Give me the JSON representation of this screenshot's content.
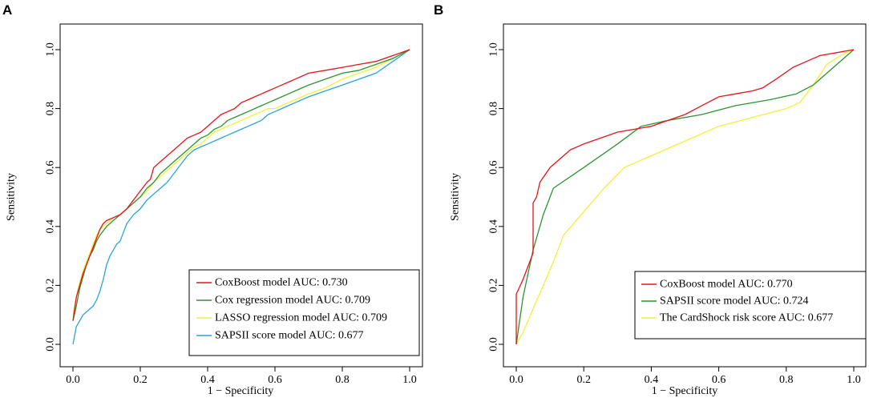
{
  "chart_data": [
    {
      "panel": "A",
      "type": "line",
      "title": "",
      "xlabel": "1 − Specificity",
      "ylabel": "Sensitivity",
      "xlim": [
        0,
        1
      ],
      "ylim": [
        0,
        1
      ],
      "xticks": [
        "0.0",
        "0.2",
        "0.4",
        "0.6",
        "0.8",
        "1.0"
      ],
      "yticks": [
        "0.0",
        "0.2",
        "0.4",
        "0.6",
        "0.8",
        "1.0"
      ],
      "grid": false,
      "legend_position": "bottom-right",
      "series": [
        {
          "name": "CoxBoost model AUC: 0.730",
          "color": "#e8131b",
          "points": [
            [
              0,
              0.08
            ],
            [
              0.005,
              0.12
            ],
            [
              0.01,
              0.16
            ],
            [
              0.02,
              0.2
            ],
            [
              0.03,
              0.24
            ],
            [
              0.04,
              0.27
            ],
            [
              0.05,
              0.3
            ],
            [
              0.06,
              0.33
            ],
            [
              0.07,
              0.36
            ],
            [
              0.08,
              0.39
            ],
            [
              0.09,
              0.41
            ],
            [
              0.1,
              0.42
            ],
            [
              0.12,
              0.43
            ],
            [
              0.14,
              0.44
            ],
            [
              0.16,
              0.46
            ],
            [
              0.18,
              0.49
            ],
            [
              0.2,
              0.52
            ],
            [
              0.22,
              0.55
            ],
            [
              0.23,
              0.56
            ],
            [
              0.24,
              0.6
            ],
            [
              0.26,
              0.62
            ],
            [
              0.28,
              0.64
            ],
            [
              0.3,
              0.66
            ],
            [
              0.32,
              0.68
            ],
            [
              0.34,
              0.7
            ],
            [
              0.36,
              0.71
            ],
            [
              0.38,
              0.72
            ],
            [
              0.4,
              0.74
            ],
            [
              0.42,
              0.76
            ],
            [
              0.44,
              0.78
            ],
            [
              0.46,
              0.79
            ],
            [
              0.48,
              0.8
            ],
            [
              0.5,
              0.82
            ],
            [
              0.52,
              0.83
            ],
            [
              0.54,
              0.84
            ],
            [
              0.56,
              0.85
            ],
            [
              0.58,
              0.86
            ],
            [
              0.6,
              0.87
            ],
            [
              0.62,
              0.88
            ],
            [
              0.64,
              0.89
            ],
            [
              0.66,
              0.9
            ],
            [
              0.68,
              0.91
            ],
            [
              0.7,
              0.92
            ],
            [
              0.75,
              0.93
            ],
            [
              0.8,
              0.94
            ],
            [
              0.85,
              0.95
            ],
            [
              0.9,
              0.96
            ],
            [
              0.95,
              0.98
            ],
            [
              1,
              1
            ]
          ]
        },
        {
          "name": "Cox regression model AUC: 0.709",
          "color": "#2e9431",
          "points": [
            [
              0,
              0.08
            ],
            [
              0.01,
              0.13
            ],
            [
              0.02,
              0.19
            ],
            [
              0.03,
              0.23
            ],
            [
              0.04,
              0.27
            ],
            [
              0.05,
              0.3
            ],
            [
              0.06,
              0.32
            ],
            [
              0.07,
              0.35
            ],
            [
              0.08,
              0.37
            ],
            [
              0.1,
              0.4
            ],
            [
              0.12,
              0.42
            ],
            [
              0.14,
              0.44
            ],
            [
              0.16,
              0.46
            ],
            [
              0.18,
              0.48
            ],
            [
              0.2,
              0.5
            ],
            [
              0.22,
              0.53
            ],
            [
              0.24,
              0.55
            ],
            [
              0.26,
              0.58
            ],
            [
              0.28,
              0.6
            ],
            [
              0.3,
              0.62
            ],
            [
              0.32,
              0.64
            ],
            [
              0.34,
              0.66
            ],
            [
              0.36,
              0.68
            ],
            [
              0.38,
              0.7
            ],
            [
              0.4,
              0.71
            ],
            [
              0.42,
              0.73
            ],
            [
              0.44,
              0.74
            ],
            [
              0.46,
              0.76
            ],
            [
              0.48,
              0.77
            ],
            [
              0.5,
              0.78
            ],
            [
              0.52,
              0.79
            ],
            [
              0.54,
              0.8
            ],
            [
              0.56,
              0.81
            ],
            [
              0.58,
              0.82
            ],
            [
              0.6,
              0.83
            ],
            [
              0.62,
              0.84
            ],
            [
              0.64,
              0.85
            ],
            [
              0.66,
              0.86
            ],
            [
              0.7,
              0.88
            ],
            [
              0.75,
              0.9
            ],
            [
              0.8,
              0.92
            ],
            [
              0.85,
              0.93
            ],
            [
              0.9,
              0.95
            ],
            [
              0.95,
              0.97
            ],
            [
              1,
              1
            ]
          ]
        },
        {
          "name": "LASSO regression model AUC: 0.709",
          "color": "#f2ef3c",
          "points": [
            [
              0,
              0.1
            ],
            [
              0.01,
              0.16
            ],
            [
              0.02,
              0.21
            ],
            [
              0.03,
              0.25
            ],
            [
              0.04,
              0.28
            ],
            [
              0.05,
              0.31
            ],
            [
              0.06,
              0.34
            ],
            [
              0.07,
              0.37
            ],
            [
              0.08,
              0.39
            ],
            [
              0.1,
              0.41
            ],
            [
              0.12,
              0.43
            ],
            [
              0.14,
              0.44
            ],
            [
              0.16,
              0.46
            ],
            [
              0.18,
              0.48
            ],
            [
              0.2,
              0.5
            ],
            [
              0.22,
              0.52
            ],
            [
              0.24,
              0.55
            ],
            [
              0.26,
              0.57
            ],
            [
              0.28,
              0.59
            ],
            [
              0.3,
              0.61
            ],
            [
              0.32,
              0.63
            ],
            [
              0.34,
              0.65
            ],
            [
              0.36,
              0.67
            ],
            [
              0.38,
              0.68
            ],
            [
              0.4,
              0.7
            ],
            [
              0.42,
              0.72
            ],
            [
              0.44,
              0.73
            ],
            [
              0.46,
              0.74
            ],
            [
              0.48,
              0.75
            ],
            [
              0.5,
              0.76
            ],
            [
              0.52,
              0.77
            ],
            [
              0.54,
              0.78
            ],
            [
              0.56,
              0.79
            ],
            [
              0.58,
              0.8
            ],
            [
              0.6,
              0.8
            ],
            [
              0.62,
              0.81
            ],
            [
              0.64,
              0.82
            ],
            [
              0.66,
              0.83
            ],
            [
              0.7,
              0.85
            ],
            [
              0.75,
              0.87
            ],
            [
              0.8,
              0.9
            ],
            [
              0.85,
              0.92
            ],
            [
              0.9,
              0.94
            ],
            [
              0.95,
              0.97
            ],
            [
              1,
              1
            ]
          ]
        },
        {
          "name": "SAPSII score model AUC: 0.677",
          "color": "#2aa4d9",
          "points": [
            [
              0,
              0
            ],
            [
              0.005,
              0.03
            ],
            [
              0.01,
              0.06
            ],
            [
              0.02,
              0.08
            ],
            [
              0.03,
              0.1
            ],
            [
              0.04,
              0.11
            ],
            [
              0.05,
              0.12
            ],
            [
              0.06,
              0.13
            ],
            [
              0.07,
              0.15
            ],
            [
              0.08,
              0.18
            ],
            [
              0.09,
              0.22
            ],
            [
              0.1,
              0.27
            ],
            [
              0.11,
              0.3
            ],
            [
              0.12,
              0.32
            ],
            [
              0.13,
              0.34
            ],
            [
              0.14,
              0.35
            ],
            [
              0.15,
              0.38
            ],
            [
              0.16,
              0.41
            ],
            [
              0.18,
              0.44
            ],
            [
              0.2,
              0.46
            ],
            [
              0.22,
              0.49
            ],
            [
              0.24,
              0.51
            ],
            [
              0.26,
              0.53
            ],
            [
              0.28,
              0.55
            ],
            [
              0.3,
              0.58
            ],
            [
              0.32,
              0.61
            ],
            [
              0.34,
              0.64
            ],
            [
              0.36,
              0.66
            ],
            [
              0.38,
              0.67
            ],
            [
              0.4,
              0.68
            ],
            [
              0.42,
              0.69
            ],
            [
              0.44,
              0.7
            ],
            [
              0.46,
              0.71
            ],
            [
              0.48,
              0.72
            ],
            [
              0.5,
              0.73
            ],
            [
              0.52,
              0.74
            ],
            [
              0.54,
              0.75
            ],
            [
              0.56,
              0.76
            ],
            [
              0.58,
              0.78
            ],
            [
              0.6,
              0.79
            ],
            [
              0.62,
              0.8
            ],
            [
              0.64,
              0.81
            ],
            [
              0.66,
              0.82
            ],
            [
              0.7,
              0.84
            ],
            [
              0.75,
              0.86
            ],
            [
              0.8,
              0.88
            ],
            [
              0.85,
              0.9
            ],
            [
              0.9,
              0.92
            ],
            [
              0.95,
              0.96
            ],
            [
              1,
              1
            ]
          ]
        }
      ]
    },
    {
      "panel": "B",
      "type": "line",
      "title": "",
      "xlabel": "1 − Specificity",
      "ylabel": "Sensitivity",
      "xlim": [
        0,
        1
      ],
      "ylim": [
        0,
        1
      ],
      "xticks": [
        "0.0",
        "0.2",
        "0.4",
        "0.6",
        "0.8",
        "1.0"
      ],
      "yticks": [
        "0.0",
        "0.2",
        "0.4",
        "0.6",
        "0.8",
        "1.0"
      ],
      "grid": false,
      "legend_position": "bottom-right",
      "series": [
        {
          "name": "CoxBoost model AUC: 0.770",
          "color": "#e8131b",
          "points": [
            [
              0,
              0
            ],
            [
              0,
              0.17
            ],
            [
              0.02,
              0.22
            ],
            [
              0.04,
              0.28
            ],
            [
              0.05,
              0.31
            ],
            [
              0.05,
              0.48
            ],
            [
              0.06,
              0.5
            ],
            [
              0.07,
              0.55
            ],
            [
              0.1,
              0.6
            ],
            [
              0.13,
              0.63
            ],
            [
              0.16,
              0.66
            ],
            [
              0.2,
              0.68
            ],
            [
              0.25,
              0.7
            ],
            [
              0.3,
              0.72
            ],
            [
              0.35,
              0.73
            ],
            [
              0.4,
              0.74
            ],
            [
              0.45,
              0.76
            ],
            [
              0.5,
              0.78
            ],
            [
              0.55,
              0.81
            ],
            [
              0.6,
              0.84
            ],
            [
              0.65,
              0.85
            ],
            [
              0.7,
              0.86
            ],
            [
              0.73,
              0.87
            ],
            [
              0.77,
              0.9
            ],
            [
              0.82,
              0.94
            ],
            [
              0.86,
              0.96
            ],
            [
              0.9,
              0.98
            ],
            [
              0.95,
              0.99
            ],
            [
              1,
              1
            ]
          ]
        },
        {
          "name": "SAPSII score model AUC: 0.724",
          "color": "#2e9431",
          "points": [
            [
              0,
              0
            ],
            [
              0.02,
              0.16
            ],
            [
              0.05,
              0.32
            ],
            [
              0.08,
              0.44
            ],
            [
              0.11,
              0.53
            ],
            [
              0.2,
              0.6
            ],
            [
              0.3,
              0.68
            ],
            [
              0.37,
              0.74
            ],
            [
              0.45,
              0.76
            ],
            [
              0.55,
              0.78
            ],
            [
              0.65,
              0.81
            ],
            [
              0.75,
              0.83
            ],
            [
              0.83,
              0.85
            ],
            [
              0.88,
              0.88
            ],
            [
              0.94,
              0.94
            ],
            [
              1,
              1
            ]
          ]
        },
        {
          "name": "The CardShock risk score AUC: 0.677",
          "color": "#f2ef3c",
          "points": [
            [
              0,
              0
            ],
            [
              0.02,
              0.04
            ],
            [
              0.05,
              0.12
            ],
            [
              0.08,
              0.2
            ],
            [
              0.11,
              0.28
            ],
            [
              0.14,
              0.37
            ],
            [
              0.2,
              0.45
            ],
            [
              0.26,
              0.53
            ],
            [
              0.32,
              0.6
            ],
            [
              0.4,
              0.64
            ],
            [
              0.5,
              0.69
            ],
            [
              0.6,
              0.74
            ],
            [
              0.7,
              0.77
            ],
            [
              0.8,
              0.8
            ],
            [
              0.84,
              0.82
            ],
            [
              0.88,
              0.88
            ],
            [
              0.92,
              0.95
            ],
            [
              0.96,
              0.98
            ],
            [
              1,
              1
            ]
          ]
        }
      ]
    }
  ]
}
